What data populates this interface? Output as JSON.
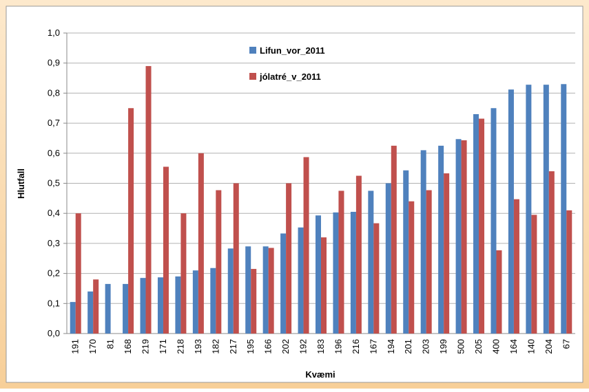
{
  "chart_data": {
    "type": "bar",
    "x_label": "Kvæmi",
    "y_label": "Hlutfall",
    "categories": [
      "191",
      "170",
      "81",
      "168",
      "219",
      "171",
      "218",
      "193",
      "182",
      "217",
      "195",
      "166",
      "202",
      "192",
      "183",
      "196",
      "216",
      "167",
      "194",
      "201",
      "203",
      "199",
      "500",
      "205",
      "400",
      "164",
      "140",
      "204",
      "67"
    ],
    "series": [
      {
        "name": "Lifun_vor_2011",
        "color": "#4f81bd",
        "values": [
          0.105,
          0.14,
          0.165,
          0.165,
          0.185,
          0.187,
          0.19,
          0.21,
          0.218,
          0.283,
          0.29,
          0.29,
          0.333,
          0.353,
          0.393,
          0.403,
          0.405,
          0.475,
          0.5,
          0.543,
          0.61,
          0.625,
          0.647,
          0.73,
          0.75,
          0.812,
          0.828,
          0.828,
          0.83
        ]
      },
      {
        "name": "jólatré_v_2011",
        "color": "#c0504d",
        "values": [
          0.4,
          0.18,
          null,
          0.75,
          0.89,
          0.555,
          0.4,
          0.6,
          0.477,
          0.5,
          0.215,
          0.285,
          0.5,
          0.587,
          0.32,
          0.475,
          0.525,
          0.367,
          0.625,
          0.44,
          0.477,
          0.533,
          0.643,
          0.715,
          0.277,
          0.447,
          0.395,
          0.54,
          0.41
        ]
      }
    ],
    "ylim": [
      0,
      1
    ],
    "yticks": [
      {
        "value": 0,
        "label": "0,0"
      },
      {
        "value": 0.1,
        "label": "0,1"
      },
      {
        "value": 0.2,
        "label": "0,2"
      },
      {
        "value": 0.3,
        "label": "0,3"
      },
      {
        "value": 0.4,
        "label": "0,4"
      },
      {
        "value": 0.5,
        "label": "0,5"
      },
      {
        "value": 0.6,
        "label": "0,6"
      },
      {
        "value": 0.7,
        "label": "0,7"
      },
      {
        "value": 0.8,
        "label": "0,8"
      },
      {
        "value": 0.9,
        "label": "0,9"
      },
      {
        "value": 1,
        "label": "1,0"
      }
    ],
    "grid": true
  }
}
